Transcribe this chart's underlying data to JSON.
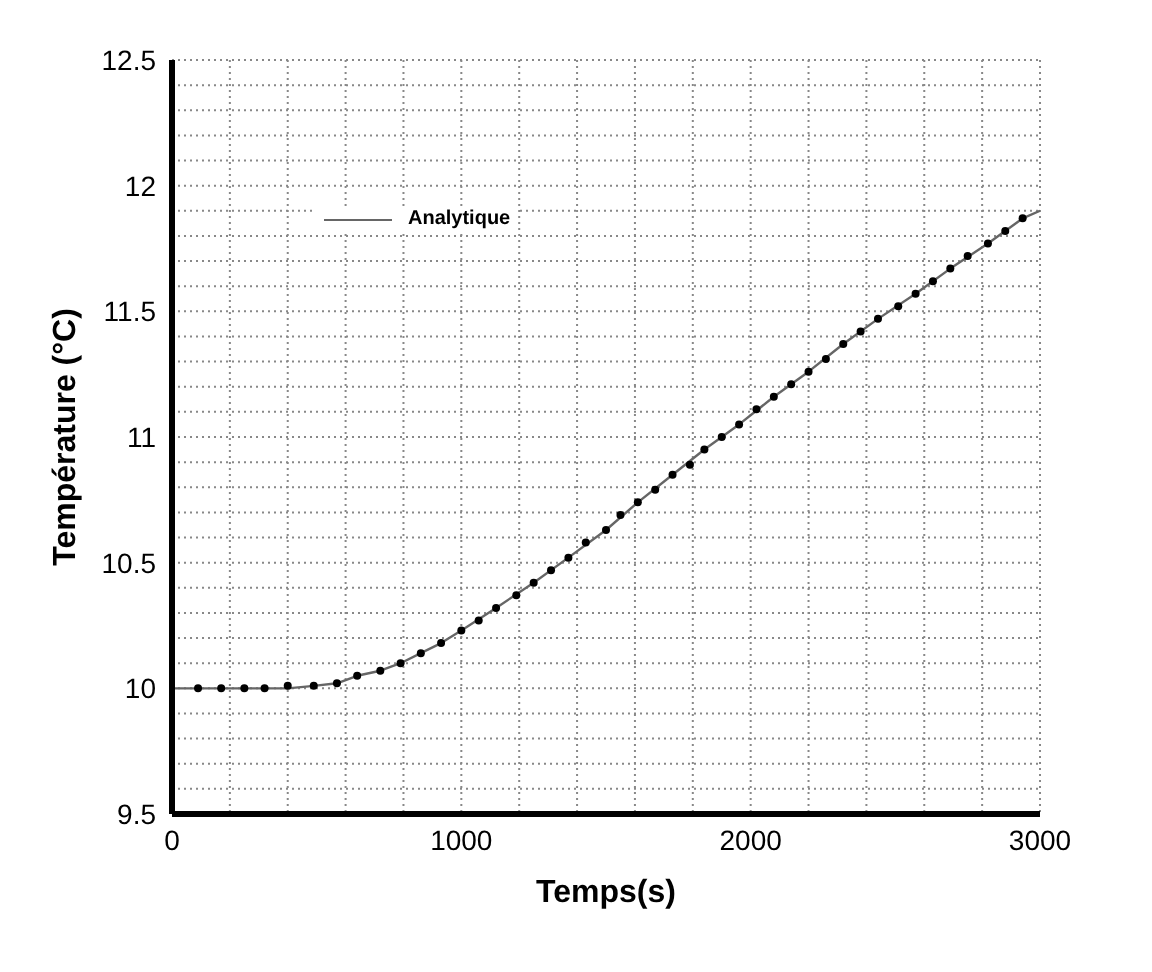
{
  "chart_data": {
    "type": "line",
    "xlabel": "Temps(s)",
    "ylabel": "Température (°C)",
    "xlim": [
      0,
      3000
    ],
    "ylim": [
      9.5,
      12.5
    ],
    "xticks": [
      0,
      {
        "value": 200,
        "label": null
      },
      {
        "value": 400,
        "label": null
      },
      {
        "value": 600,
        "label": null
      },
      {
        "value": 800,
        "label": null
      },
      1000,
      {
        "value": 1200,
        "label": null
      },
      {
        "value": 1400,
        "label": null
      },
      {
        "value": 1600,
        "label": null
      },
      {
        "value": 1800,
        "label": null
      },
      2000,
      {
        "value": 2200,
        "label": null
      },
      {
        "value": 2400,
        "label": null
      },
      {
        "value": 2600,
        "label": null
      },
      {
        "value": 2800,
        "label": null
      },
      3000
    ],
    "yticks": [
      9.5,
      {
        "value": 9.6,
        "label": null
      },
      {
        "value": 9.7,
        "label": null
      },
      {
        "value": 9.8,
        "label": null
      },
      {
        "value": 9.9,
        "label": null
      },
      10,
      {
        "value": 10.1,
        "label": null
      },
      {
        "value": 10.2,
        "label": null
      },
      {
        "value": 10.3,
        "label": null
      },
      {
        "value": 10.4,
        "label": null
      },
      10.5,
      {
        "value": 10.6,
        "label": null
      },
      {
        "value": 10.7,
        "label": null
      },
      {
        "value": 10.8,
        "label": null
      },
      {
        "value": 10.9,
        "label": null
      },
      11,
      {
        "value": 11.1,
        "label": null
      },
      {
        "value": 11.2,
        "label": null
      },
      {
        "value": 11.3,
        "label": null
      },
      {
        "value": 11.4,
        "label": null
      },
      11.5,
      {
        "value": 11.6,
        "label": null
      },
      {
        "value": 11.7,
        "label": null
      },
      {
        "value": 11.8,
        "label": null
      },
      {
        "value": 11.9,
        "label": null
      },
      12,
      {
        "value": 12.1,
        "label": null
      },
      {
        "value": 12.2,
        "label": null
      },
      {
        "value": 12.3,
        "label": null
      },
      {
        "value": 12.4,
        "label": null
      },
      12.5
    ],
    "grid": true,
    "legend": "top left",
    "series": [
      {
        "type": "scatter",
        "marker": "circle",
        "color": "#000000",
        "x": [
          90,
          170,
          250,
          320,
          400,
          490,
          570,
          640,
          720,
          790,
          860,
          930,
          1000,
          1060,
          1120,
          1190,
          1250,
          1310,
          1370,
          1430,
          1500,
          1550,
          1610,
          1670,
          1730,
          1790,
          1840,
          1900,
          1960,
          2020,
          2080,
          2140,
          2200,
          2260,
          2320,
          2380,
          2440,
          2510,
          2570,
          2630,
          2690,
          2750,
          2820,
          2880,
          2940
        ],
        "values": [
          10.0,
          10.0,
          10.0,
          10.0,
          10.01,
          10.01,
          10.02,
          10.05,
          10.07,
          10.1,
          10.14,
          10.18,
          10.23,
          10.27,
          10.32,
          10.37,
          10.42,
          10.47,
          10.52,
          10.58,
          10.63,
          10.69,
          10.74,
          10.79,
          10.85,
          10.89,
          10.95,
          11.0,
          11.05,
          11.11,
          11.16,
          11.21,
          11.26,
          11.31,
          11.37,
          11.42,
          11.47,
          11.52,
          11.57,
          11.62,
          11.67,
          11.72,
          11.77,
          11.82,
          11.87
        ]
      },
      {
        "name": "Analytique",
        "marker": "none",
        "line_style": "solid",
        "color": "#666666",
        "x": [
          0,
          400,
          490,
          570,
          640,
          720,
          790,
          860,
          930,
          1000,
          1120,
          1250,
          1370,
          1500,
          1610,
          1730,
          1840,
          1960,
          2080,
          2200,
          2320,
          2440,
          2570,
          2690,
          2820,
          2940,
          3000
        ],
        "values": [
          10.0,
          10.0,
          10.01,
          10.02,
          10.05,
          10.07,
          10.1,
          10.14,
          10.18,
          10.23,
          10.32,
          10.42,
          10.52,
          10.63,
          10.74,
          10.85,
          10.95,
          11.05,
          11.16,
          11.26,
          11.37,
          11.47,
          11.57,
          11.67,
          11.77,
          11.87,
          11.9
        ]
      }
    ]
  }
}
